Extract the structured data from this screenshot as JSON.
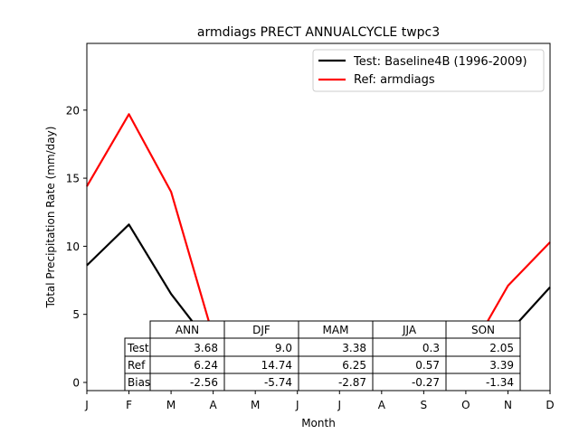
{
  "chart_data": {
    "type": "line",
    "title": "armdiags PRECT ANNUALCYCLE twpc3",
    "xlabel": "Month",
    "ylabel": "Total Precipitation Rate (mm/day)",
    "x_ticks": [
      "J",
      "F",
      "M",
      "A",
      "M",
      "J",
      "J",
      "A",
      "S",
      "O",
      "N",
      "D"
    ],
    "y_ticks": [
      0,
      5,
      10,
      15,
      20
    ],
    "ylim": [
      -0.6,
      24.9
    ],
    "grid": false,
    "legend_position": "upper right",
    "series": [
      {
        "name": "Test: Baseline4B (1996-2009)",
        "color": "#000000",
        "values": [
          8.6,
          11.6,
          6.5,
          2.5,
          1.0,
          0.4,
          0.2,
          0.3,
          1.0,
          1.6,
          3.6,
          7.0
        ]
      },
      {
        "name": "Ref: armdiags",
        "color": "#ff0000",
        "values": [
          14.4,
          19.7,
          14.0,
          3.4,
          1.2,
          0.5,
          0.4,
          0.8,
          1.3,
          1.7,
          7.1,
          10.3
        ]
      }
    ],
    "table": {
      "columns": [
        "ANN",
        "DJF",
        "MAM",
        "JJA",
        "SON"
      ],
      "rows": [
        {
          "label": "Test",
          "values": [
            "3.68",
            "9.0",
            "3.38",
            "0.3",
            "2.05"
          ]
        },
        {
          "label": "Ref",
          "values": [
            "6.24",
            "14.74",
            "6.25",
            "0.57",
            "3.39"
          ]
        },
        {
          "label": "Bias",
          "values": [
            "-2.56",
            "-5.74",
            "-2.87",
            "-0.27",
            "-1.34"
          ]
        }
      ]
    }
  }
}
